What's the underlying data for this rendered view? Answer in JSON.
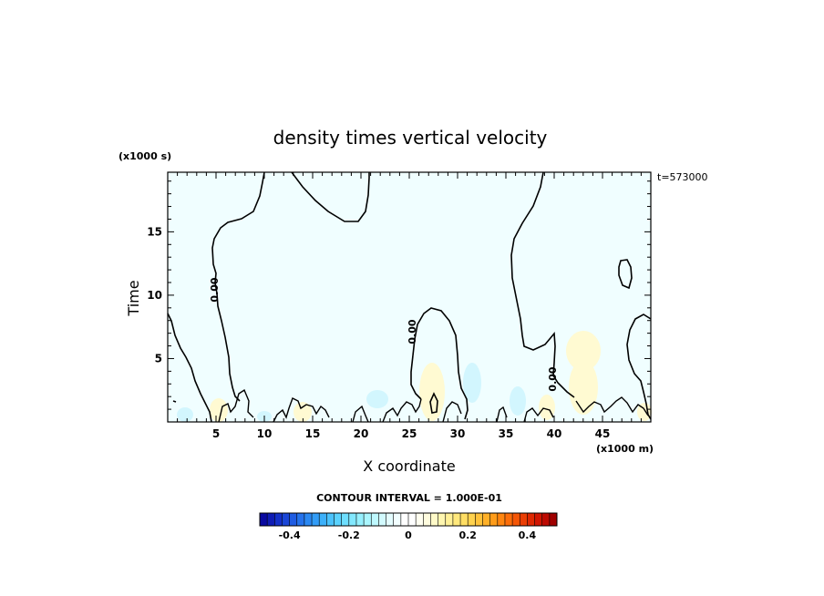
{
  "chart_data": {
    "type": "heatmap",
    "title": "density times vertical velocity",
    "xlabel": "X coordinate",
    "ylabel": "Time",
    "x_units": "(x1000 m)",
    "y_units": "(x1000 s)",
    "time_stamp": "t=573000",
    "xlim": [
      0,
      50
    ],
    "ylim": [
      0,
      19.7
    ],
    "x_ticks": [
      "5",
      "10",
      "15",
      "20",
      "25",
      "30",
      "35",
      "40",
      "45"
    ],
    "y_ticks": [
      "5",
      "10",
      "15"
    ],
    "contour_label": "0.00",
    "contour_interval_text": "CONTOUR INTERVAL = 1.000E-01",
    "colorbar": {
      "range": [
        -0.5,
        0.5
      ],
      "tick_labels": [
        "-0.4",
        "-0.2",
        "0",
        "0.2",
        "0.4"
      ],
      "colors": [
        "#0a0aa0",
        "#0f1cb4",
        "#1430c8",
        "#1a46d6",
        "#1f5ce2",
        "#2472ec",
        "#2a88f2",
        "#329cf6",
        "#3cb0fa",
        "#4ac2fc",
        "#5ad2fe",
        "#6edefe",
        "#82e8fe",
        "#96f0fe",
        "#aaf6fe",
        "#bef8fe",
        "#d2fafe",
        "#e4fcfe",
        "#f2feff",
        "#ffffff",
        "#ffffff",
        "#fffef0",
        "#fffcde",
        "#fffac8",
        "#fff6b0",
        "#fff096",
        "#ffe87c",
        "#ffde64",
        "#ffd24e",
        "#ffc23a",
        "#ffb028",
        "#ff9c1a",
        "#ff8610",
        "#fc6e0a",
        "#f45606",
        "#ea3e04",
        "#de2802",
        "#d01602",
        "#bc0a02",
        "#a00000"
      ]
    },
    "field_color_background": "#f0feff",
    "field_color_positive": "#fffad2",
    "field_color_negative": "#d2f6fe"
  }
}
